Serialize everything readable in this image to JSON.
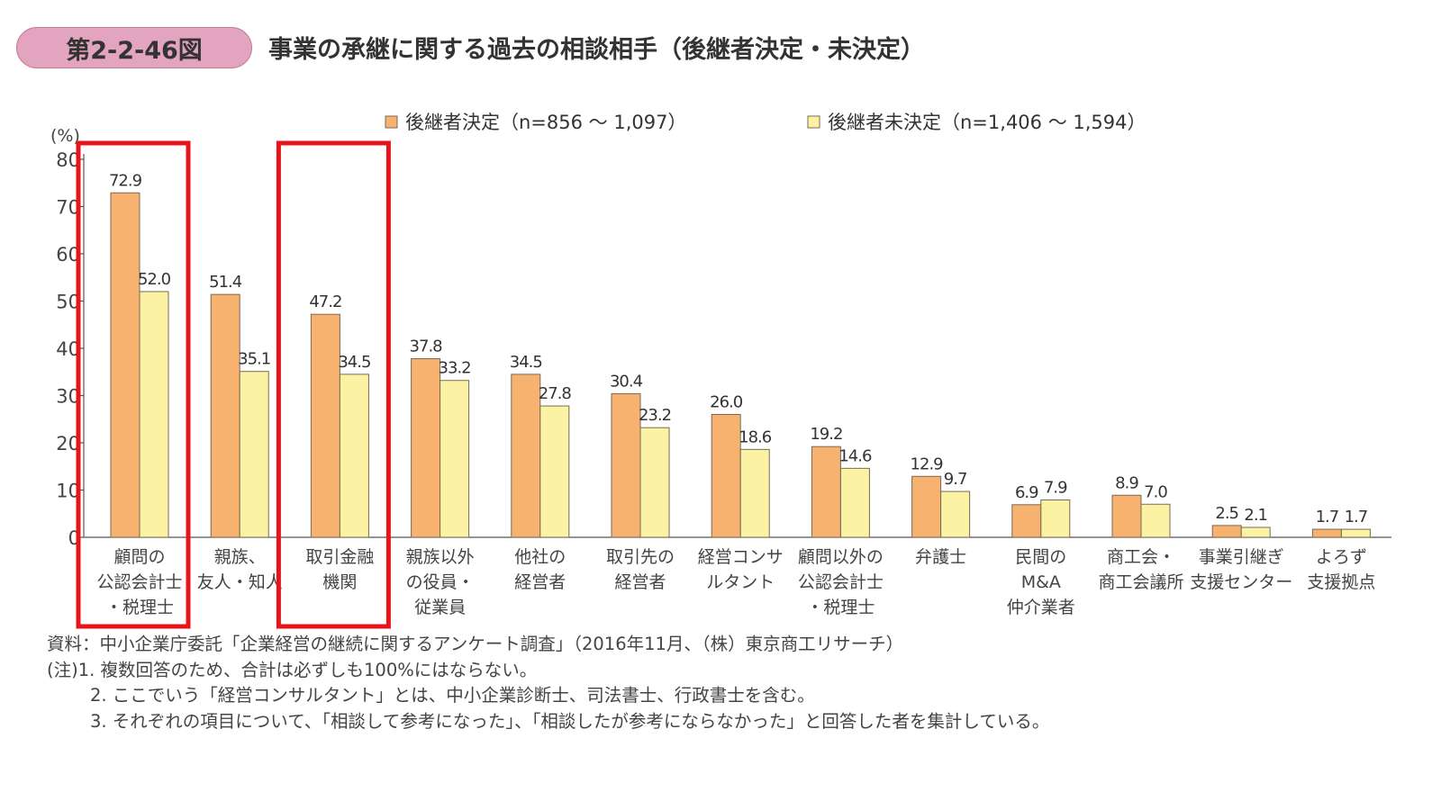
{
  "figure": {
    "number": "第2-2-46図",
    "title": "事業の承継に関する過去の相談相手（後継者決定・未決定）"
  },
  "chart_data": {
    "type": "bar",
    "y_unit_label": "(%)",
    "ylim": [
      0,
      80
    ],
    "yticks": [
      "0",
      "10",
      "20",
      "30",
      "40",
      "50",
      "60",
      "70",
      "80"
    ],
    "categories": [
      [
        "顧問の",
        "公認会計士",
        "・税理士"
      ],
      [
        "親族、",
        "友人・知人"
      ],
      [
        "取引金融",
        "機関"
      ],
      [
        "親族以外",
        "の役員・",
        "従業員"
      ],
      [
        "他社の",
        "経営者"
      ],
      [
        "取引先の",
        "経営者"
      ],
      [
        "経営コンサ",
        "ルタント"
      ],
      [
        "顧問以外の",
        "公認会計士",
        "・税理士"
      ],
      [
        "弁護士"
      ],
      [
        "民間の",
        "M&A",
        "仲介業者"
      ],
      [
        "商工会・",
        "商工会議所"
      ],
      [
        "事業引継ぎ",
        "支援センター"
      ],
      [
        "よろず",
        "支援拠点"
      ]
    ],
    "series": [
      {
        "name": "後継者決定（n=856 ～ 1,097）",
        "color": "#f7b26f",
        "values": [
          72.9,
          51.4,
          47.2,
          37.8,
          34.5,
          30.4,
          26.0,
          19.2,
          12.9,
          6.9,
          8.9,
          2.5,
          1.7
        ],
        "labels": [
          "72.9",
          "51.4",
          "47.2",
          "37.8",
          "34.5",
          "30.4",
          "26.0",
          "19.2",
          "12.9",
          "6.9",
          "8.9",
          "2.5",
          "1.7"
        ]
      },
      {
        "name": "後継者未決定（n=1,406 ～ 1,594）",
        "color": "#fbf3a3",
        "values": [
          52.0,
          35.1,
          34.5,
          33.2,
          27.8,
          23.2,
          18.6,
          14.6,
          9.7,
          7.9,
          7.0,
          2.1,
          1.7
        ],
        "labels": [
          "52.0",
          "35.1",
          "34.5",
          "33.2",
          "27.8",
          "23.2",
          "18.6",
          "14.6",
          "9.7",
          "7.9",
          "7.0",
          "2.1",
          "1.7"
        ]
      }
    ],
    "highlighted_categories": [
      0,
      2
    ],
    "highlight_color": "#e8141b",
    "grid": false,
    "legend_position": "top"
  },
  "notes": [
    "資料：中小企業庁委託「企業経営の継続に関するアンケート調査」（2016年11月、（株）東京商工リサーチ）",
    "(注)1. 複数回答のため、合計は必ずしも100%にはならない。",
    "2. ここでいう「経営コンサルタント」とは、中小企業診断士、司法書士、行政書士を含む。",
    "3. それぞれの項目について、「相談して参考になった」、「相談したが参考にならなかった」と回答した者を集計している。"
  ]
}
